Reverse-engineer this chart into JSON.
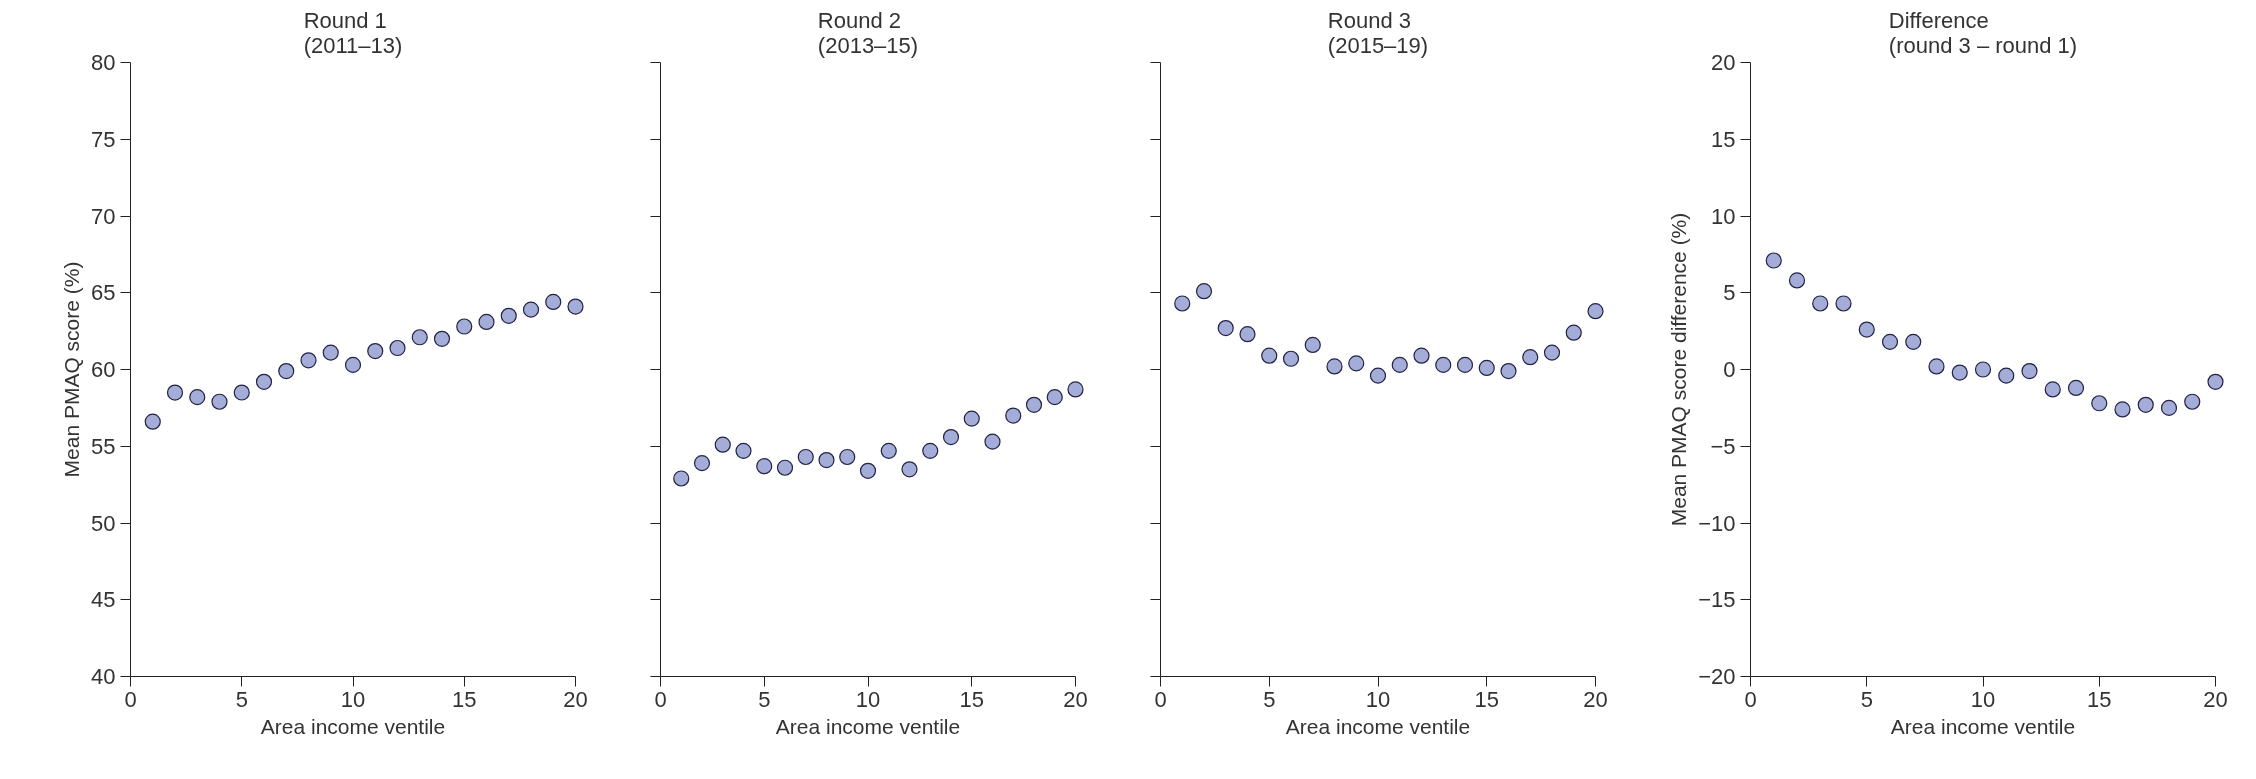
{
  "chart_data": [
    {
      "type": "scatter",
      "title": "Round 1\n(2011–13)",
      "xlabel": "Area income ventile",
      "ylabel": "Mean PMAQ score (%)",
      "marker": "circle",
      "grid": false,
      "xlim": [
        0,
        20
      ],
      "xticks": [
        0,
        5,
        10,
        15,
        20
      ],
      "ylim": [
        40,
        80
      ],
      "yticks": [
        40,
        45,
        50,
        55,
        60,
        65,
        70,
        75,
        80
      ],
      "x": [
        1,
        2,
        3,
        4,
        5,
        6,
        7,
        8,
        9,
        10,
        11,
        12,
        13,
        14,
        15,
        16,
        17,
        18,
        19,
        20
      ],
      "series": [
        {
          "color": "#a4acd8",
          "values": [
            56.6,
            58.5,
            58.2,
            57.9,
            58.5,
            59.2,
            59.9,
            60.6,
            61.1,
            60.3,
            61.2,
            61.4,
            62.1,
            62.0,
            62.8,
            63.1,
            63.5,
            63.9,
            64.4,
            64.1
          ]
        }
      ]
    },
    {
      "type": "scatter",
      "title": "Round 2\n(2013–15)",
      "xlabel": "Area income ventile",
      "marker": "circle",
      "grid": false,
      "tick_labels": "x",
      "xlim": [
        0,
        20
      ],
      "xticks": [
        0,
        5,
        10,
        15,
        20
      ],
      "ylim": [
        40,
        80
      ],
      "yticks": [
        40,
        45,
        50,
        55,
        60,
        65,
        70,
        75,
        80
      ],
      "x": [
        1,
        2,
        3,
        4,
        5,
        6,
        7,
        8,
        9,
        10,
        11,
        12,
        13,
        14,
        15,
        16,
        17,
        18,
        19,
        20
      ],
      "series": [
        {
          "color": "#a4acd8",
          "values": [
            52.9,
            53.9,
            55.1,
            54.7,
            53.7,
            53.6,
            54.3,
            54.1,
            54.3,
            53.4,
            54.7,
            53.5,
            54.7,
            55.6,
            56.8,
            55.3,
            57.0,
            57.7,
            58.2,
            58.7
          ]
        }
      ]
    },
    {
      "type": "scatter",
      "title": "Round 3\n(2015–19)",
      "xlabel": "Area income ventile",
      "marker": "circle",
      "grid": false,
      "tick_labels": "x",
      "xlim": [
        0,
        20
      ],
      "xticks": [
        0,
        5,
        10,
        15,
        20
      ],
      "ylim": [
        40,
        80
      ],
      "yticks": [
        40,
        45,
        50,
        55,
        60,
        65,
        70,
        75,
        80
      ],
      "x": [
        1,
        2,
        3,
        4,
        5,
        6,
        7,
        8,
        9,
        10,
        11,
        12,
        13,
        14,
        15,
        16,
        17,
        18,
        19,
        20
      ],
      "series": [
        {
          "color": "#a4acd8",
          "values": [
            64.3,
            65.1,
            62.7,
            62.3,
            60.9,
            60.7,
            61.6,
            60.2,
            60.4,
            59.6,
            60.3,
            60.9,
            60.3,
            60.3,
            60.1,
            59.9,
            60.8,
            61.1,
            62.4,
            63.8
          ]
        }
      ]
    },
    {
      "type": "scatter",
      "title": "Difference\n(round 3 – round 1)",
      "xlabel": "Area income ventile",
      "ylabel": "Mean PMAQ score difference (%)",
      "marker": "circle",
      "grid": false,
      "xlim": [
        0,
        20
      ],
      "xticks": [
        0,
        5,
        10,
        15,
        20
      ],
      "ylim": [
        -20,
        20
      ],
      "yticks": [
        {
          "value": -20,
          "label": "−20"
        },
        {
          "value": -15,
          "label": "−15"
        },
        {
          "value": -10,
          "label": "−10"
        },
        {
          "value": -5,
          "label": "−5"
        },
        0,
        5,
        10,
        15,
        20
      ],
      "x": [
        1,
        2,
        3,
        4,
        5,
        6,
        7,
        8,
        9,
        10,
        11,
        12,
        13,
        14,
        15,
        16,
        17,
        18,
        19,
        20
      ],
      "series": [
        {
          "color": "#a4acd8",
          "values": [
            7.1,
            5.8,
            4.3,
            4.3,
            2.6,
            1.8,
            1.8,
            0.2,
            -0.2,
            0.0,
            -0.4,
            -0.1,
            -1.3,
            -1.2,
            -2.2,
            -2.6,
            -2.3,
            -2.5,
            -2.1,
            -0.8
          ]
        }
      ]
    }
  ]
}
